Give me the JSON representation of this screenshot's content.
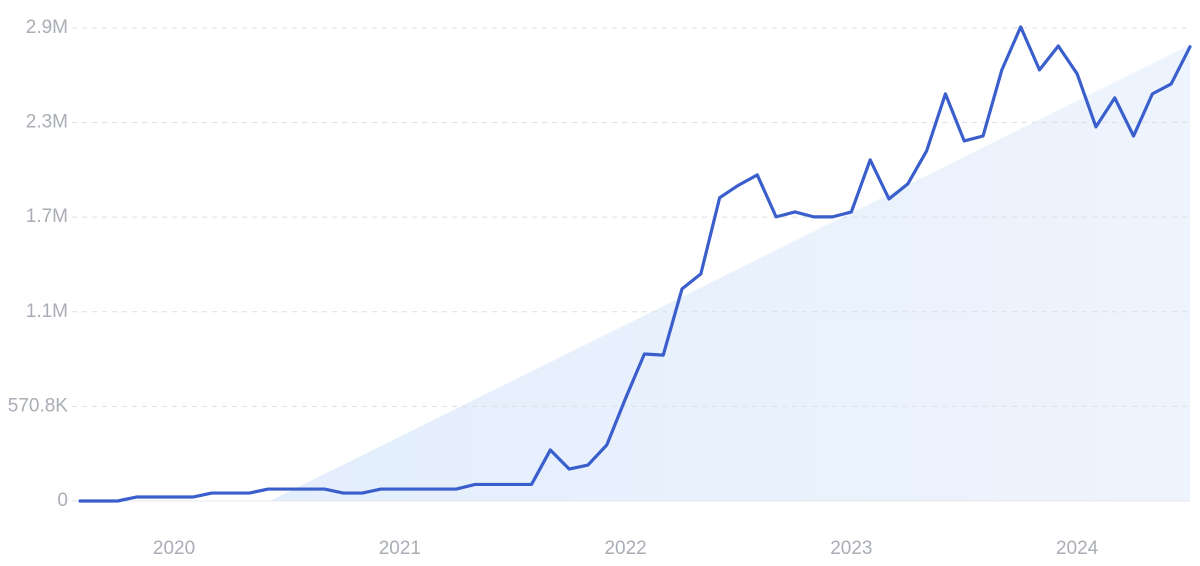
{
  "chart_data": {
    "type": "line",
    "categories": [
      null,
      null,
      null,
      null,
      null,
      "2020",
      null,
      null,
      null,
      null,
      null,
      null,
      null,
      null,
      null,
      null,
      null,
      "2021",
      null,
      null,
      null,
      null,
      null,
      null,
      null,
      null,
      null,
      null,
      null,
      "2022",
      null,
      null,
      null,
      null,
      null,
      null,
      null,
      null,
      null,
      null,
      null,
      "2023",
      null,
      null,
      null,
      null,
      null,
      null,
      null,
      null,
      null,
      null,
      null,
      "2024",
      null,
      null,
      null,
      null,
      null,
      null
    ],
    "series": [
      {
        "color": "#3a5fcd",
        "values": [
          0,
          0,
          0,
          24000,
          24000,
          24000,
          24000,
          48000,
          48000,
          48000,
          72000,
          72000,
          72000,
          72000,
          48000,
          48000,
          72000,
          72000,
          72000,
          72000,
          72000,
          100000,
          100000,
          100000,
          100000,
          308000,
          193000,
          217000,
          338000,
          620000,
          887000,
          880000,
          1280000,
          1370000,
          1830000,
          1905000,
          1967000,
          1714000,
          1744000,
          1714000,
          1714000,
          1744000,
          2058000,
          1822000,
          1913000,
          2112000,
          2456000,
          2172000,
          2202000,
          2601000,
          2860000,
          2601000,
          2745000,
          2577000,
          2257000,
          2432000,
          2202000,
          2456000,
          2516000,
          2740000
        ]
      }
    ],
    "ylim": [
      0,
      2950000
    ],
    "yticks": [
      0,
      {
        "value": 570800,
        "label": "570.8K"
      },
      {
        "value": 1141600,
        "label": "1.1M"
      },
      {
        "value": 1712400,
        "label": "1.7M"
      },
      {
        "value": 2283200,
        "label": "2.3M"
      },
      {
        "value": 2854000,
        "label": "2.9M"
      }
    ],
    "grid": true
  }
}
